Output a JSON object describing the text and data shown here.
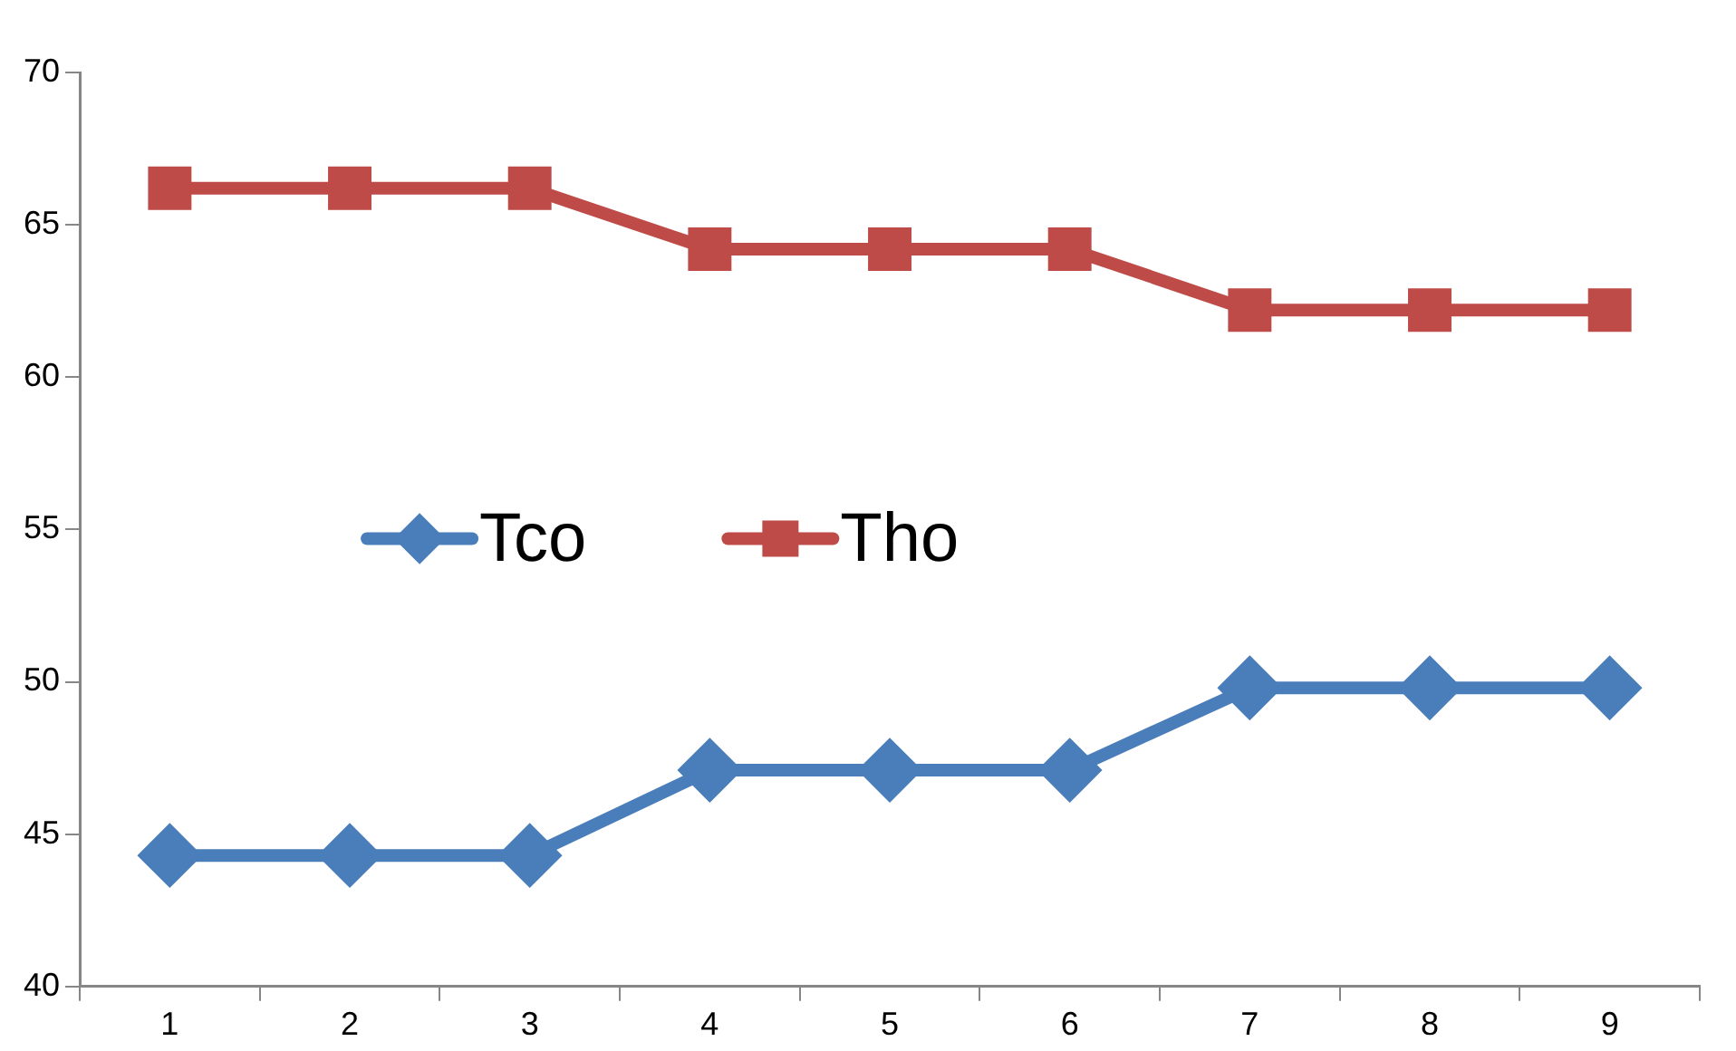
{
  "chart_data": {
    "type": "line",
    "categories": [
      "1",
      "2",
      "3",
      "4",
      "5",
      "6",
      "7",
      "8",
      "9"
    ],
    "series": [
      {
        "name": "Tco",
        "color": "#4a7ebb",
        "marker": "diamond",
        "values": [
          44.3,
          44.3,
          44.3,
          47.1,
          47.1,
          47.1,
          49.8,
          49.8,
          49.8
        ]
      },
      {
        "name": "Tho",
        "color": "#be4b48",
        "marker": "square",
        "values": [
          66.2,
          66.2,
          66.2,
          64.2,
          64.2,
          64.2,
          62.2,
          62.2,
          62.2
        ]
      }
    ],
    "ylim": [
      40,
      70
    ],
    "yticks": [
      40,
      45,
      50,
      55,
      60,
      65,
      70
    ],
    "grid": false,
    "legend": "center",
    "line_style": "solid"
  }
}
